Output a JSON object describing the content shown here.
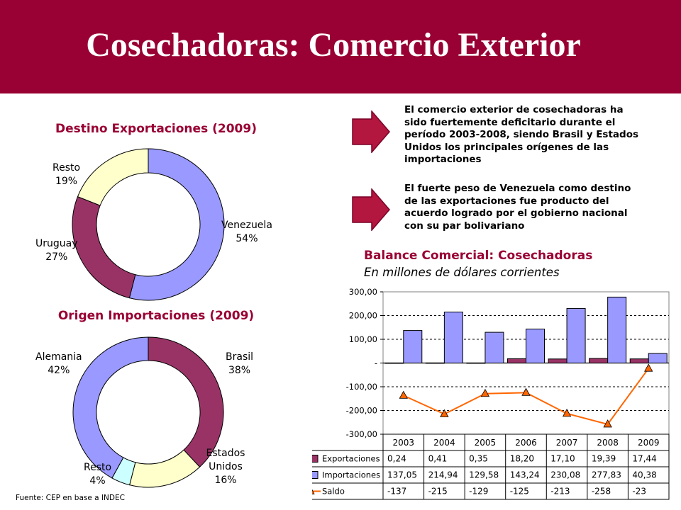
{
  "header": {
    "title": "Cosechadoras: Comercio Exterior"
  },
  "donut_export_title": "Destino Exportaciones (2009)",
  "donut_import_title": "Origen Importaciones (2009)",
  "notes": [
    "El comercio exterior de cosechadoras ha sido fuertemente deficitario durante el período 2003-2008, siendo Brasil y Estados Unidos los principales orígenes de las importaciones",
    "El fuerte peso de Venezuela como destino de las exportaciones fue producto del acuerdo logrado por el gobierno nacional con su par bolivariano"
  ],
  "balance_title": "Balance Comercial: Cosechadoras",
  "balance_subtitle": "En millones de dólares corrientes",
  "source": "Fuente: CEP en base a INDEC",
  "colors": {
    "banner": "#990033",
    "export": "#993366",
    "import": "#9999ff",
    "saldo": "#ff6600",
    "rest_export": "#ffffcc",
    "rest_import": "#ccffff"
  },
  "chart_data": [
    {
      "type": "pie",
      "title": "Destino Exportaciones (2009)",
      "categories": [
        "Venezuela",
        "Uruguay",
        "Resto"
      ],
      "values": [
        54,
        27,
        19
      ],
      "value_labels": [
        "54%",
        "27%",
        "19%"
      ],
      "colors": [
        "#9999ff",
        "#993366",
        "#ffffcc"
      ]
    },
    {
      "type": "pie",
      "title": "Origen Importaciones (2009)",
      "categories": [
        "Brasil",
        "Estados Unidos",
        "Resto",
        "Alemania"
      ],
      "values": [
        38,
        16,
        4,
        42
      ],
      "value_labels": [
        "38%",
        "16%",
        "4%",
        "42%"
      ],
      "colors": [
        "#993366",
        "#ffffcc",
        "#ccffff",
        "#9999ff"
      ]
    },
    {
      "type": "bar",
      "title": "Balance Comercial: Cosechadoras",
      "subtitle": "En millones de dólares corrientes",
      "categories": [
        "2003",
        "2004",
        "2005",
        "2006",
        "2007",
        "2008",
        "2009"
      ],
      "ylim": [
        -300,
        300
      ],
      "yticks": [
        "300,00",
        "200,00",
        "100,00",
        "-",
        "-100,00",
        "-200,00",
        "-300,00"
      ],
      "grid": true,
      "series": [
        {
          "name": "Exportaciones",
          "kind": "bar",
          "color": "#993366",
          "values": [
            0.24,
            0.41,
            0.35,
            18.2,
            17.1,
            19.39,
            17.44
          ],
          "labels": [
            "0,24",
            "0,41",
            "0,35",
            "18,20",
            "17,10",
            "19,39",
            "17,44"
          ]
        },
        {
          "name": "Importaciones",
          "kind": "bar",
          "color": "#9999ff",
          "values": [
            137.05,
            214.94,
            129.58,
            143.24,
            230.08,
            277.83,
            40.38
          ],
          "labels": [
            "137,05",
            "214,94",
            "129,58",
            "143,24",
            "230,08",
            "277,83",
            "40,38"
          ]
        },
        {
          "name": "Saldo",
          "kind": "line",
          "color": "#ff6600",
          "values": [
            -137,
            -215,
            -129,
            -125,
            -213,
            -258,
            -23
          ],
          "labels": [
            "-137",
            "-215",
            "-129",
            "-125",
            "-213",
            "-258",
            "-23"
          ]
        }
      ]
    }
  ]
}
